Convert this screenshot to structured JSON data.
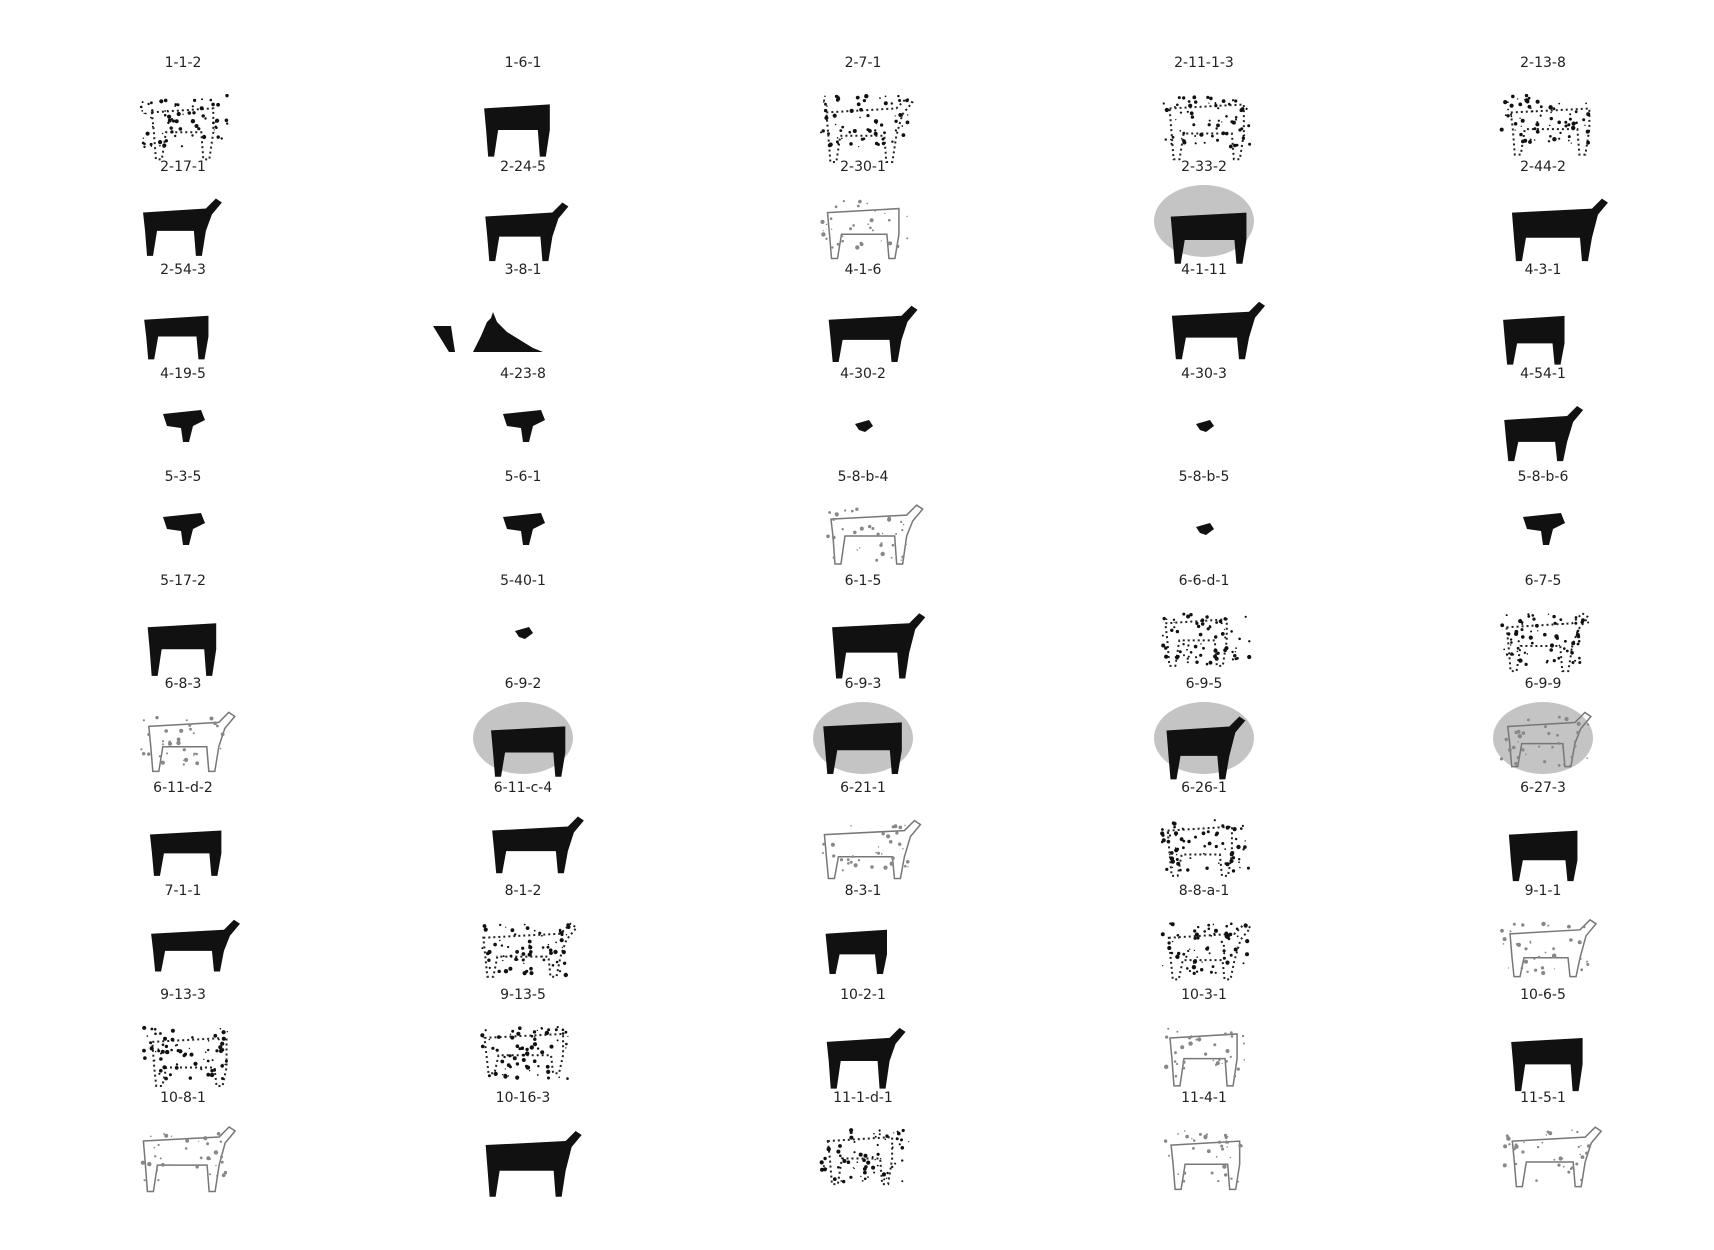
{
  "figure": {
    "columns": 5,
    "items": [
      {
        "label": "1-1-2",
        "style": "scatter",
        "halo": false
      },
      {
        "label": "1-6-1",
        "style": "solid",
        "halo": false
      },
      {
        "label": "2-7-1",
        "style": "scatter",
        "halo": false
      },
      {
        "label": "2-11-1-3",
        "style": "scatter",
        "halo": false
      },
      {
        "label": "2-13-8",
        "style": "scatter",
        "halo": false
      },
      {
        "label": "2-17-1",
        "style": "solid",
        "halo": false
      },
      {
        "label": "2-24-5",
        "style": "solid",
        "halo": false
      },
      {
        "label": "2-30-1",
        "style": "faint",
        "halo": false
      },
      {
        "label": "2-33-2",
        "style": "solid",
        "halo": true
      },
      {
        "label": "2-44-2",
        "style": "solid",
        "halo": false
      },
      {
        "label": "2-54-3",
        "style": "solid",
        "halo": false
      },
      {
        "label": "3-8-1",
        "style": "wide",
        "halo": false
      },
      {
        "label": "4-1-6",
        "style": "solid",
        "halo": false
      },
      {
        "label": "4-1-11",
        "style": "solid",
        "halo": false
      },
      {
        "label": "4-3-1",
        "style": "solid",
        "halo": false
      },
      {
        "label": "4-19-5",
        "style": "small",
        "halo": false
      },
      {
        "label": "4-23-8",
        "style": "small",
        "halo": false
      },
      {
        "label": "4-30-2",
        "style": "tiny",
        "halo": false
      },
      {
        "label": "4-30-3",
        "style": "tiny",
        "halo": false
      },
      {
        "label": "4-54-1",
        "style": "solid",
        "halo": false
      },
      {
        "label": "5-3-5",
        "style": "small",
        "halo": false
      },
      {
        "label": "5-6-1",
        "style": "small",
        "halo": false
      },
      {
        "label": "5-8-b-4",
        "style": "faint",
        "halo": false
      },
      {
        "label": "5-8-b-5",
        "style": "tiny",
        "halo": false
      },
      {
        "label": "5-8-b-6",
        "style": "small",
        "halo": false
      },
      {
        "label": "5-17-2",
        "style": "solid",
        "halo": false
      },
      {
        "label": "5-40-1",
        "style": "tiny",
        "halo": false
      },
      {
        "label": "6-1-5",
        "style": "solid",
        "halo": false
      },
      {
        "label": "6-6-d-1",
        "style": "scatter",
        "halo": false
      },
      {
        "label": "6-7-5",
        "style": "scatter",
        "halo": false
      },
      {
        "label": "6-8-3",
        "style": "faint",
        "halo": false
      },
      {
        "label": "6-9-2",
        "style": "solid",
        "halo": true
      },
      {
        "label": "6-9-3",
        "style": "solid",
        "halo": true
      },
      {
        "label": "6-9-5",
        "style": "solid",
        "halo": true
      },
      {
        "label": "6-9-9",
        "style": "faint",
        "halo": true
      },
      {
        "label": "6-11-d-2",
        "style": "solid",
        "halo": false
      },
      {
        "label": "6-11-c-4",
        "style": "solid",
        "halo": false
      },
      {
        "label": "6-21-1",
        "style": "faint",
        "halo": false
      },
      {
        "label": "6-26-1",
        "style": "scatter",
        "halo": false
      },
      {
        "label": "6-27-3",
        "style": "solid",
        "halo": false
      },
      {
        "label": "7-1-1",
        "style": "solid",
        "halo": false
      },
      {
        "label": "8-1-2",
        "style": "scatter",
        "halo": false
      },
      {
        "label": "8-3-1",
        "style": "solid",
        "halo": false
      },
      {
        "label": "8-8-a-1",
        "style": "scatter",
        "halo": false
      },
      {
        "label": "9-1-1",
        "style": "faint",
        "halo": false
      },
      {
        "label": "9-13-3",
        "style": "scatter",
        "halo": false
      },
      {
        "label": "9-13-5",
        "style": "scatter",
        "halo": false
      },
      {
        "label": "10-2-1",
        "style": "solid",
        "halo": false
      },
      {
        "label": "10-3-1",
        "style": "faint",
        "halo": false
      },
      {
        "label": "10-6-5",
        "style": "solid",
        "halo": false
      },
      {
        "label": "10-8-1",
        "style": "faint",
        "halo": false
      },
      {
        "label": "10-16-3",
        "style": "solid",
        "halo": false
      },
      {
        "label": "11-1-d-1",
        "style": "scatter",
        "halo": false
      },
      {
        "label": "11-4-1",
        "style": "faint",
        "halo": false
      },
      {
        "label": "11-5-1",
        "style": "faint",
        "halo": false
      }
    ]
  }
}
